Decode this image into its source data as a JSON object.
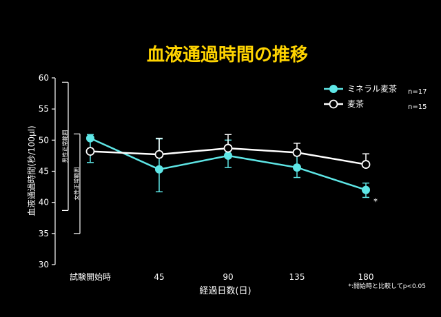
{
  "chart_data": {
    "type": "line",
    "title": "血液通過時間の推移",
    "xlabel": "経過日数(日)",
    "ylabel": "血液通過時間(秒/100μl)",
    "categories": [
      "試験開始時",
      "45",
      "90",
      "135",
      "180"
    ],
    "ylim": [
      30,
      60
    ],
    "yticks": [
      30,
      35,
      40,
      45,
      50,
      55,
      60
    ],
    "series": [
      {
        "name": "ミネラル麦茶",
        "n_label": "n=17",
        "color": "#5ee6e6",
        "marker": "filled-circle",
        "values": [
          50.3,
          45.3,
          47.5,
          45.6,
          42.0
        ],
        "err_low": [
          46.4,
          41.7,
          45.6,
          44.0,
          40.8
        ],
        "err_high": [
          50.9,
          50.2,
          50.0,
          48.3,
          43.1
        ]
      },
      {
        "name": "麦茶",
        "n_label": "n=15",
        "color": "#ffffff",
        "marker": "open-circle",
        "values": [
          48.2,
          47.7,
          48.7,
          48.0,
          46.1
        ],
        "err_low": [
          48.2,
          47.7,
          48.7,
          48.0,
          46.1
        ],
        "err_high": [
          48.2,
          50.3,
          50.9,
          49.5,
          47.8
        ]
      }
    ],
    "ranges": [
      {
        "label": "男性正常範囲",
        "low": 38.7,
        "high": 59.3
      },
      {
        "label": "女性正常範囲",
        "low": 35.0,
        "high": 51.0
      }
    ],
    "significance_marker": "*",
    "significance_index": 4,
    "footnote": "*:開始時と比較してp<0.05",
    "grid": false,
    "legend_position": "top-right"
  }
}
